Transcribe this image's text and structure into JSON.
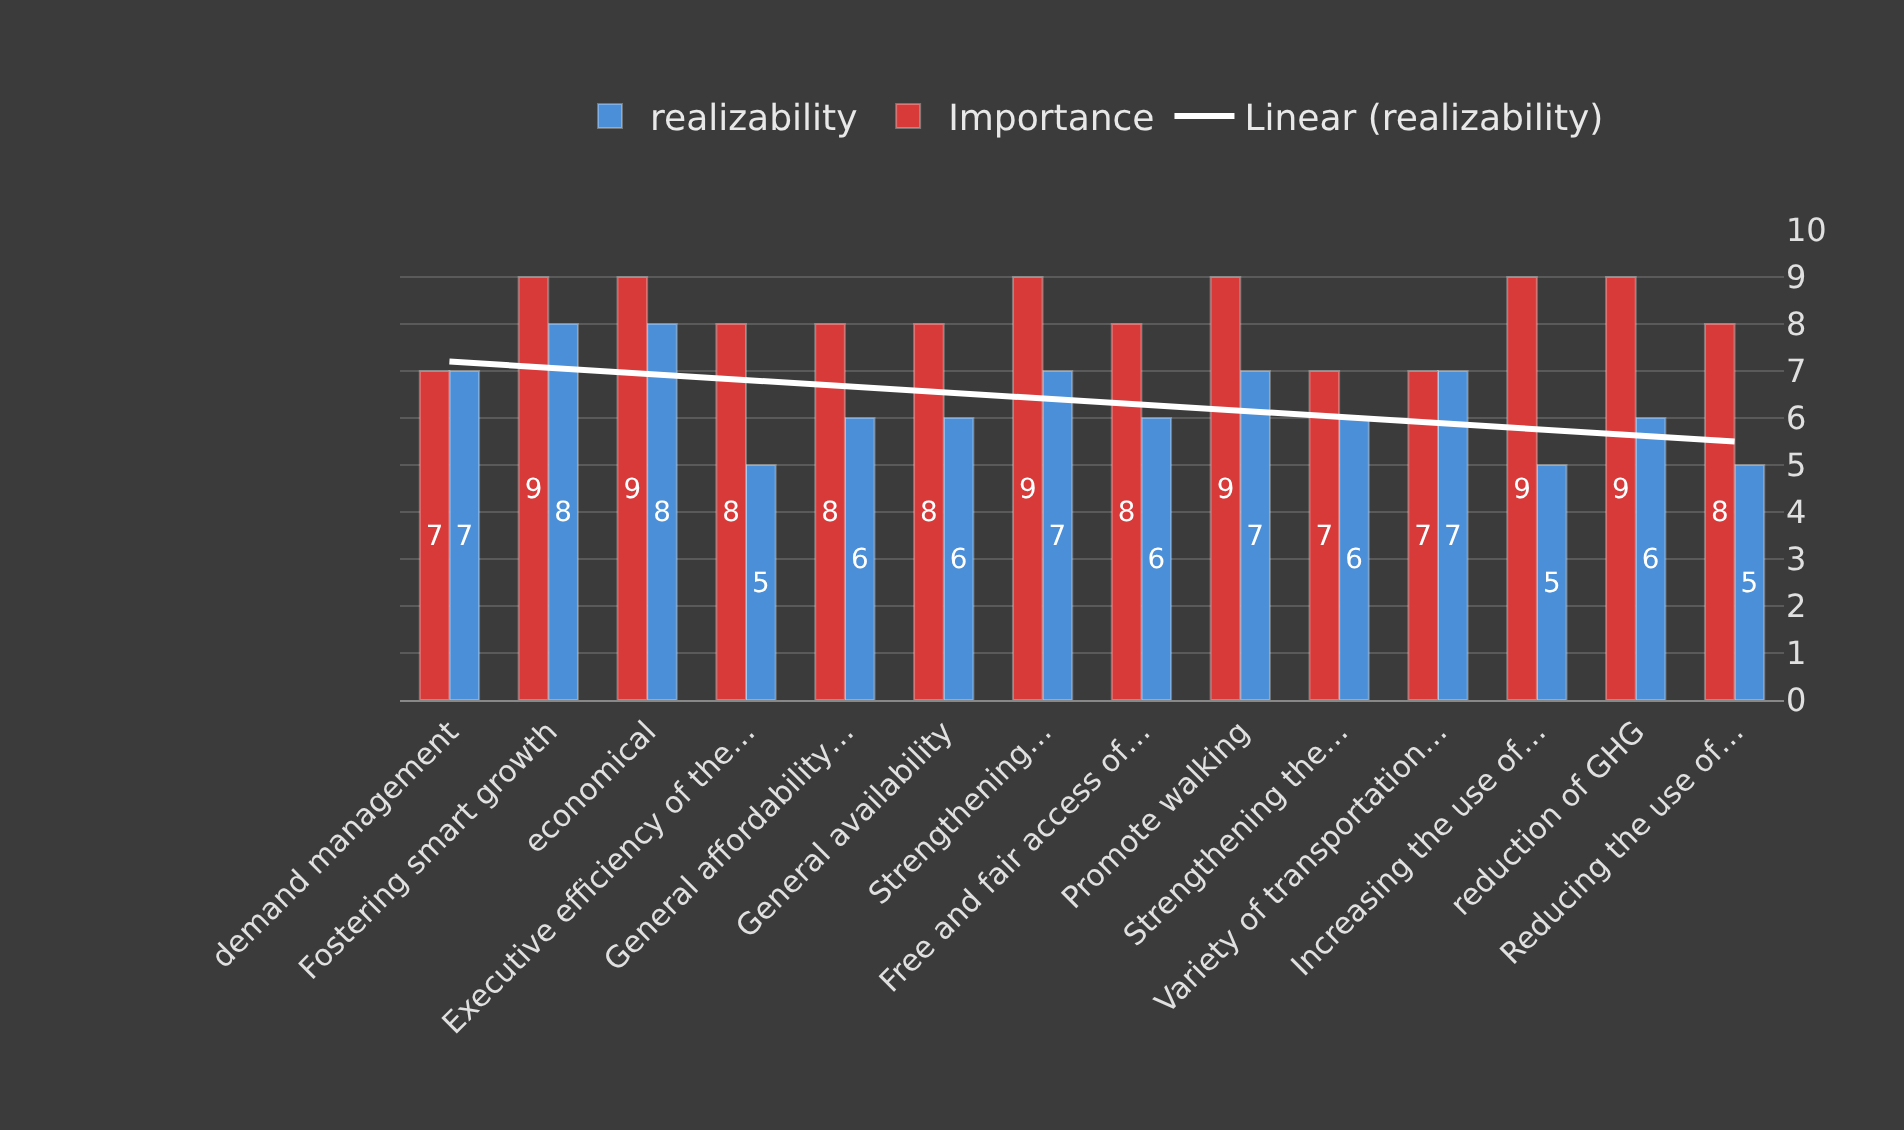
{
  "chart_data": {
    "type": "bar",
    "categories": [
      "demand management",
      "Fostering smart growth",
      "economical",
      "Executive efficiency of the…",
      "General affordability…",
      "General availability",
      "Strengthening…",
      "Free and fair access of…",
      "Promote walking",
      "Strengthening the…",
      "Variety of transportation…",
      "Increasing the use of…",
      "reduction of GHG",
      "Reducing the use of…"
    ],
    "series": [
      {
        "name": "realizability",
        "color": "#4a8fd8",
        "values": [
          7,
          8,
          8,
          5,
          6,
          6,
          7,
          6,
          7,
          6,
          7,
          5,
          6,
          5
        ],
        "value_labels": [
          "7",
          "8",
          "8",
          "5",
          "6",
          "6",
          "7",
          "6",
          "7",
          "6",
          "7",
          "5",
          "6",
          "5"
        ]
      },
      {
        "name": "Importance",
        "color": "#d83a3a",
        "values": [
          7,
          9,
          9,
          8,
          8,
          8,
          9,
          8,
          9,
          7,
          7,
          9,
          9,
          8
        ],
        "value_labels": [
          "7",
          "9",
          "9",
          "8",
          "8",
          "8",
          "9",
          "8",
          "9",
          "7",
          "7",
          "9",
          "9",
          "8"
        ]
      },
      {
        "name": "Linear (realizability)",
        "type": "line",
        "color": "#ffffff",
        "x": [
          "demand management",
          "Reducing the use of…"
        ],
        "values": [
          7.2,
          5.5
        ]
      }
    ],
    "ylim": [
      0,
      10
    ],
    "yticks": [
      0,
      1,
      2,
      3,
      4,
      5,
      6,
      7,
      8,
      9,
      10
    ],
    "grid": "y",
    "legend": "top"
  }
}
